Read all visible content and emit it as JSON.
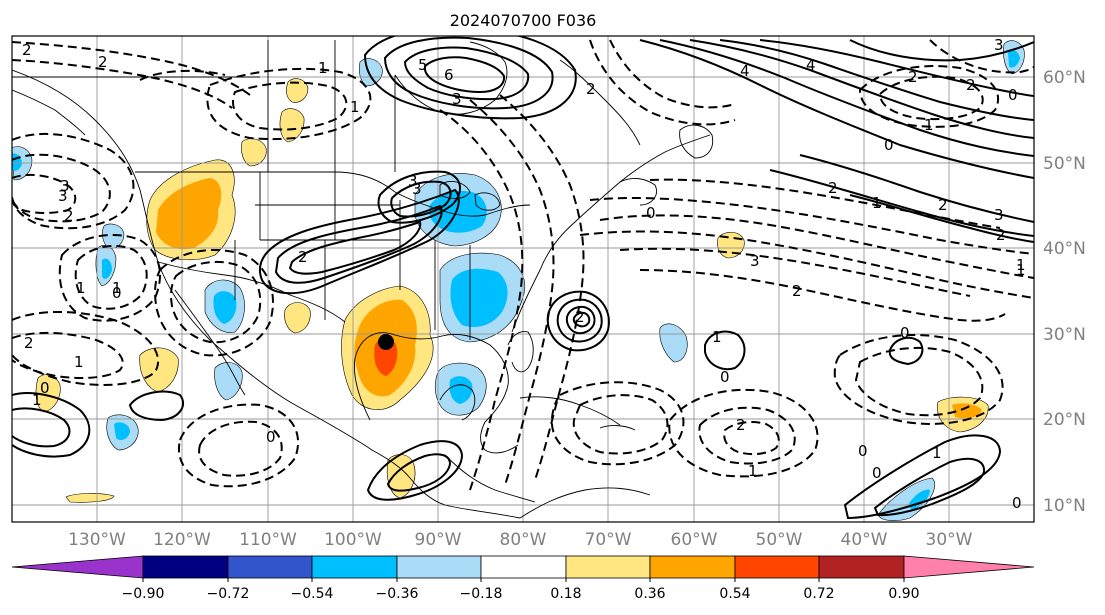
{
  "title": "2024070700 F036",
  "latitude_labels": [
    "60°N",
    "50°N",
    "40°N",
    "30°N",
    "20°N",
    "10°N"
  ],
  "longitude_labels": [
    "130°W",
    "120°W",
    "110°W",
    "100°W",
    "90°W",
    "80°W",
    "70°W",
    "60°W",
    "50°W",
    "40°W",
    "30°W"
  ],
  "colorbar": {
    "tick_labels": [
      "−0.90",
      "−0.72",
      "−0.54",
      "−0.36",
      "−0.18",
      "0.18",
      "0.36",
      "0.54",
      "0.72",
      "0.90"
    ],
    "colors": [
      "#9933cc",
      "#000080",
      "#3355cc",
      "#00bfff",
      "#aadcf8",
      "#ffffff",
      "#ffe680",
      "#ffa500",
      "#ff4500",
      "#b22222",
      "#ff80aa"
    ],
    "extend": "both"
  },
  "contour_labels": [
    "2",
    "1",
    "2",
    "3",
    "2",
    "1",
    "6",
    "5",
    "4",
    "3",
    "2",
    "4",
    "3",
    "2",
    "2",
    "1",
    "0",
    "2",
    "3",
    "2",
    "3",
    "2",
    "1",
    "0",
    "2",
    "3",
    "2",
    "1",
    "1",
    "0",
    "0",
    "2",
    "1",
    "0",
    "1",
    "1",
    "0",
    "0",
    "1",
    "2",
    "3",
    "1",
    "1",
    "3",
    "2",
    "0",
    "0",
    "1",
    "0",
    "0"
  ],
  "marker": {
    "lon": -96.3,
    "lat": 28.9,
    "color": "#000000"
  },
  "coastline_color": "#000000",
  "grid": true
}
